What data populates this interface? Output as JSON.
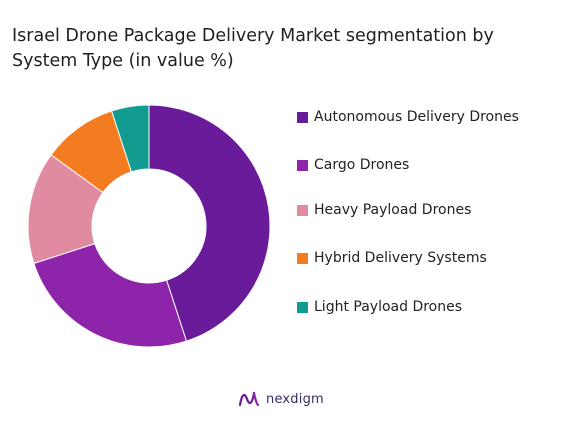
{
  "header": {
    "title_line1": "Israel Drone Package Delivery Market segmentation by",
    "title_line2": "System Type (in value %)"
  },
  "chart_data": {
    "type": "pie",
    "donut": true,
    "categories": [
      "Autonomous Delivery Drones",
      "Cargo Drones",
      "Heavy Payload Drones",
      "Hybrid Delivery Systems",
      "Light Payload Drones"
    ],
    "values": [
      45,
      25,
      15,
      10,
      5
    ],
    "colors": [
      "#6a1b9a",
      "#8e24aa",
      "#e08ba0",
      "#f47c20",
      "#119c8f"
    ],
    "legend_position": "right"
  },
  "footer": {
    "brand_name": "nexdigm",
    "brand_icon": "nexdigm-logo-icon"
  }
}
